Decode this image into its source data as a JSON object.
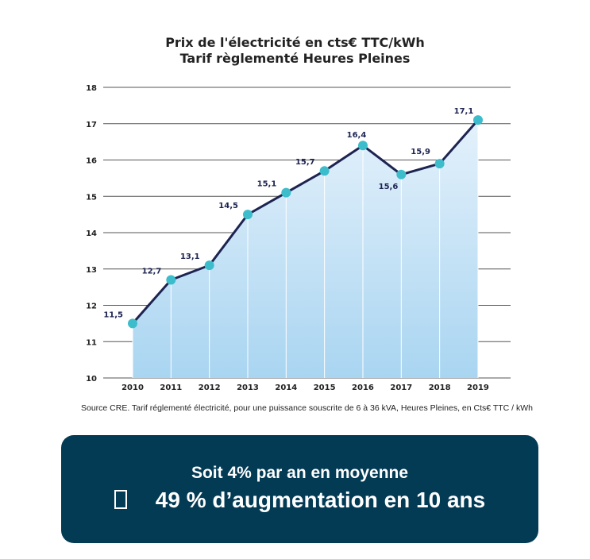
{
  "chart_data": {
    "type": "area",
    "title": "Prix de l'électricité en cts€ TTC/kWh",
    "subtitle": "Tarif règlementé Heures Pleines",
    "categories": [
      "2010",
      "2011",
      "2012",
      "2013",
      "2014",
      "2015",
      "2016",
      "2017",
      "2018",
      "2019"
    ],
    "values": [
      11.5,
      12.7,
      13.1,
      14.5,
      15.1,
      15.7,
      16.4,
      15.6,
      15.9,
      17.1
    ],
    "data_labels": [
      "11,5",
      "12,7",
      "13,1",
      "14,5",
      "15,1",
      "15,7",
      "16,4",
      "15,6",
      "15,9",
      "17,1"
    ],
    "yticks": [
      "10",
      "11",
      "12",
      "13",
      "14",
      "15",
      "16",
      "17",
      "18"
    ],
    "ylim": [
      10,
      18
    ],
    "grid": true,
    "colors": {
      "line": "#1d2451",
      "marker": "#3dbdcb",
      "fill_top": "#e4f1fb",
      "fill_bottom": "#a9d5f1"
    }
  },
  "source": "Source CRE. Tarif réglementé électricité, pour une puissance souscrite de 6 à 36 kVA, Heures Pleines, en Cts€ TTC / kWh",
  "callout": {
    "line1": "Soit 4% par an en moyenne",
    "line2": "49 % d’augmentation en 10 ans",
    "icon": "missing-glyph-box",
    "bg": "#033a54"
  }
}
